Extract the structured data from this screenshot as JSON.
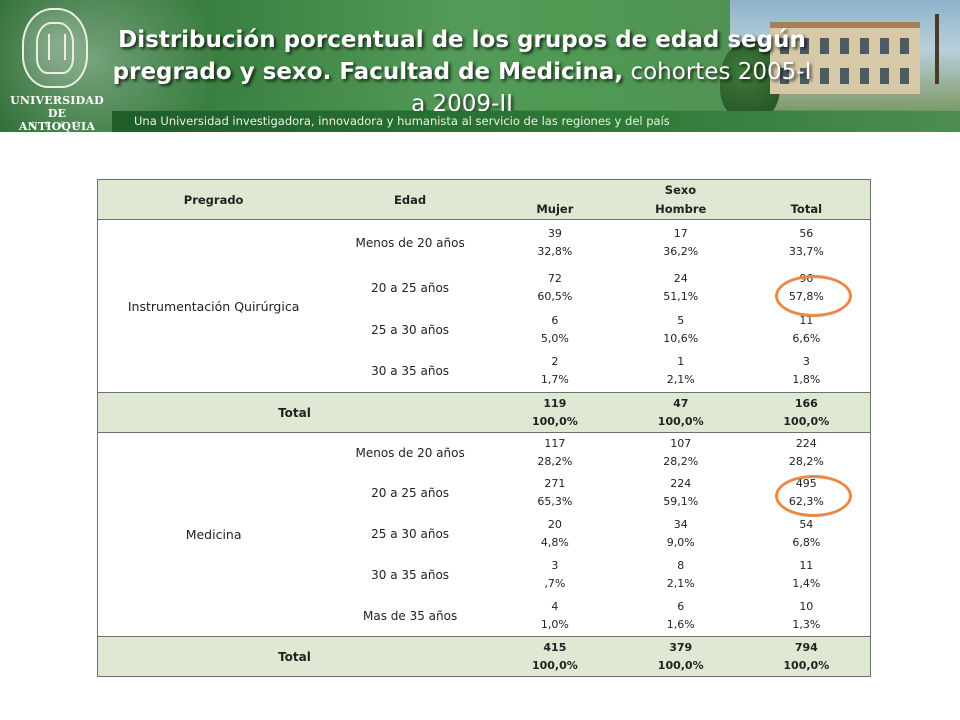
{
  "header": {
    "title_bold": "Distribución porcentual de los grupos de edad según pregrado y sexo. Facultad de Medicina,",
    "title_normal": " cohortes 2005-I a 2009-II",
    "subtitle": "Una Universidad investigadora, innovadora y humanista al servicio de las regiones y del país",
    "logo_line1": "UNIVERSIDAD",
    "logo_line2": "DE ANTIOQUIA",
    "logo_line3": "1 8 0 3"
  },
  "table": {
    "col_pregrado": "Pregrado",
    "col_edad": "Edad",
    "col_sexo": "Sexo",
    "col_mujer": "Mujer",
    "col_hombre": "Hombre",
    "col_total": "Total",
    "groups": [
      {
        "program": "Instrumentación Quirúrgica",
        "rows": [
          {
            "edad": "Menos de 20 años",
            "mujer_n": "39",
            "mujer_p": "32,8%",
            "hombre_n": "17",
            "hombre_p": "36,2%",
            "total_n": "56",
            "total_p": "33,7%"
          },
          {
            "edad": "20 a 25 años",
            "mujer_n": "72",
            "mujer_p": "60,5%",
            "hombre_n": "24",
            "hombre_p": "51,1%",
            "total_n": "96",
            "total_p": "57,8%"
          },
          {
            "edad": "25 a 30 años",
            "mujer_n": "6",
            "mujer_p": "5,0%",
            "hombre_n": "5",
            "hombre_p": "10,6%",
            "total_n": "11",
            "total_p": "6,6%"
          },
          {
            "edad": "30 a 35 años",
            "mujer_n": "2",
            "mujer_p": "1,7%",
            "hombre_n": "1",
            "hombre_p": "2,1%",
            "total_n": "3",
            "total_p": "1,8%"
          }
        ],
        "total": {
          "label": "Total",
          "mujer_n": "119",
          "mujer_p": "100,0%",
          "hombre_n": "47",
          "hombre_p": "100,0%",
          "total_n": "166",
          "total_p": "100,0%"
        }
      },
      {
        "program": "Medicina",
        "rows": [
          {
            "edad": "Menos de 20 años",
            "mujer_n": "117",
            "mujer_p": "28,2%",
            "hombre_n": "107",
            "hombre_p": "28,2%",
            "total_n": "224",
            "total_p": "28,2%"
          },
          {
            "edad": "20 a 25 años",
            "mujer_n": "271",
            "mujer_p": "65,3%",
            "hombre_n": "224",
            "hombre_p": "59,1%",
            "total_n": "495",
            "total_p": "62,3%"
          },
          {
            "edad": "25 a 30 años",
            "mujer_n": "20",
            "mujer_p": "4,8%",
            "hombre_n": "34",
            "hombre_p": "9,0%",
            "total_n": "54",
            "total_p": "6,8%"
          },
          {
            "edad": "30 a 35 años",
            "mujer_n": "3",
            "mujer_p": ",7%",
            "hombre_n": "8",
            "hombre_p": "2,1%",
            "total_n": "11",
            "total_p": "1,4%"
          },
          {
            "edad": "Mas de 35 años",
            "mujer_n": "4",
            "mujer_p": "1,0%",
            "hombre_n": "6",
            "hombre_p": "1,6%",
            "total_n": "10",
            "total_p": "1,3%"
          }
        ],
        "total": {
          "label": "Total",
          "mujer_n": "415",
          "mujer_p": "100,0%",
          "hombre_n": "379",
          "hombre_p": "100,0%",
          "total_n": "794",
          "total_p": "100,0%"
        }
      }
    ]
  },
  "colors": {
    "header_green": "#35803c",
    "table_header_bg": "#dfe8d2",
    "highlight_circle": "#e88a46"
  }
}
